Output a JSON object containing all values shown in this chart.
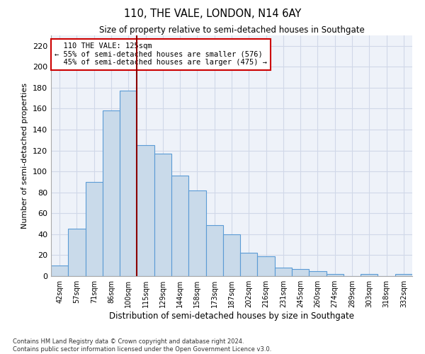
{
  "title1": "110, THE VALE, LONDON, N14 6AY",
  "title2": "Size of property relative to semi-detached houses in Southgate",
  "xlabel": "Distribution of semi-detached houses by size in Southgate",
  "ylabel": "Number of semi-detached properties",
  "categories": [
    "42sqm",
    "57sqm",
    "71sqm",
    "86sqm",
    "100sqm",
    "115sqm",
    "129sqm",
    "144sqm",
    "158sqm",
    "173sqm",
    "187sqm",
    "202sqm",
    "216sqm",
    "231sqm",
    "245sqm",
    "260sqm",
    "274sqm",
    "289sqm",
    "303sqm",
    "318sqm",
    "332sqm"
  ],
  "values": [
    10,
    45,
    90,
    158,
    177,
    125,
    117,
    96,
    82,
    49,
    40,
    22,
    19,
    8,
    7,
    5,
    2,
    0,
    2,
    0,
    2
  ],
  "bar_color": "#c9daea",
  "bar_edge_color": "#5b9bd5",
  "property_label": "110 THE VALE: 125sqm",
  "pct_smaller": 55,
  "pct_larger": 45,
  "n_smaller": 576,
  "n_larger": 475,
  "vline_color": "#8b0000",
  "annotation_box_edge_color": "#cc0000",
  "ylim": [
    0,
    230
  ],
  "yticks": [
    0,
    20,
    40,
    60,
    80,
    100,
    120,
    140,
    160,
    180,
    200,
    220
  ],
  "grid_color": "#d0d8e8",
  "bg_color": "#eef2f9",
  "footer1": "Contains HM Land Registry data © Crown copyright and database right 2024.",
  "footer2": "Contains public sector information licensed under the Open Government Licence v3.0."
}
